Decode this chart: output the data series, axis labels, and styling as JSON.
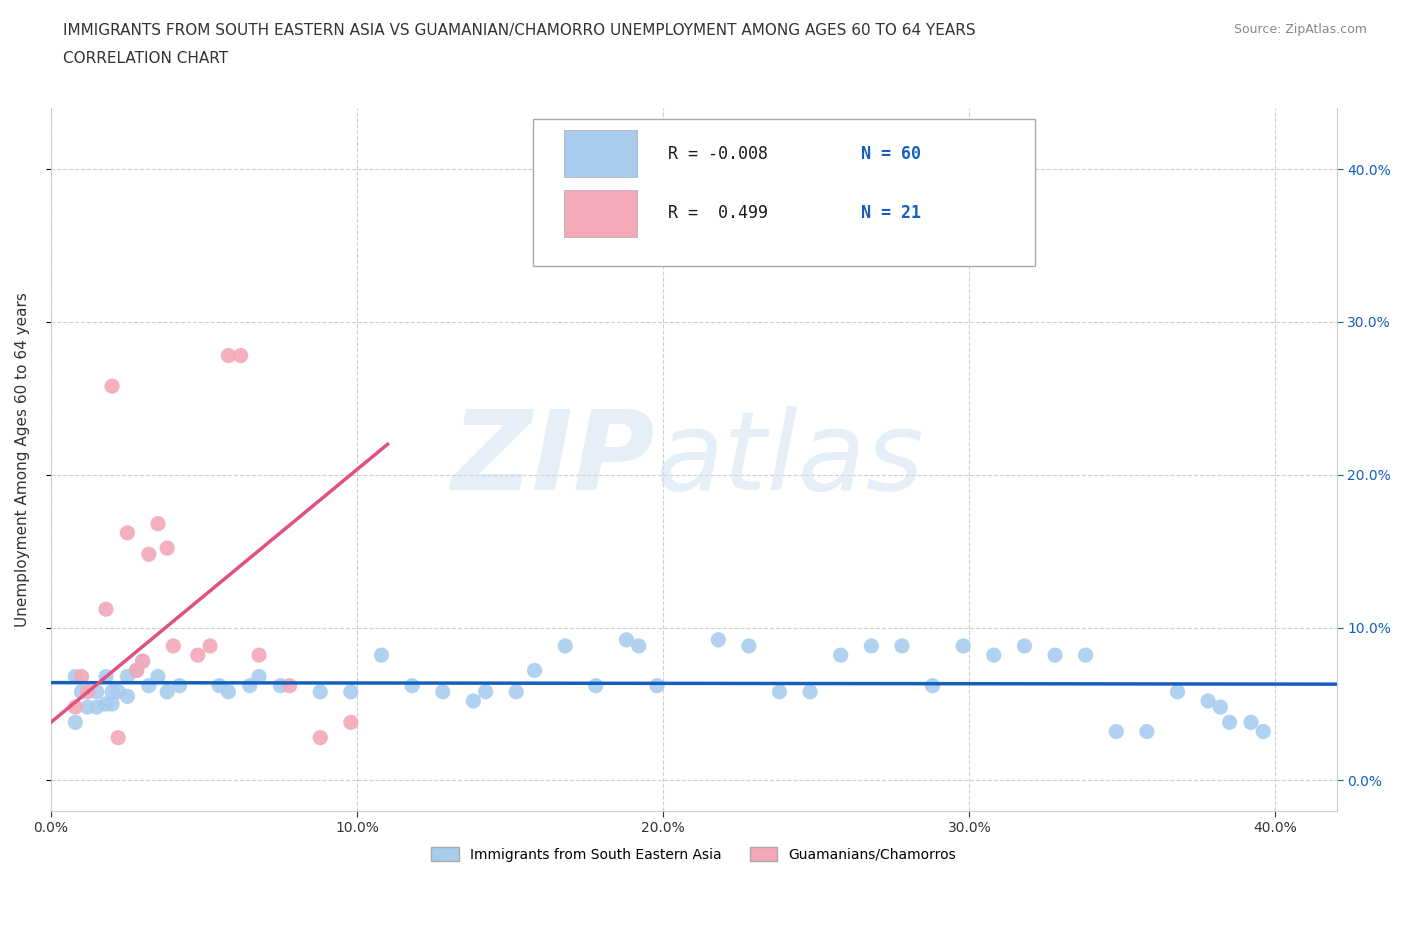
{
  "title_line1": "IMMIGRANTS FROM SOUTH EASTERN ASIA VS GUAMANIAN/CHAMORRO UNEMPLOYMENT AMONG AGES 60 TO 64 YEARS",
  "title_line2": "CORRELATION CHART",
  "source_text": "Source: ZipAtlas.com",
  "ylabel": "Unemployment Among Ages 60 to 64 years",
  "xlim": [
    0.0,
    0.42
  ],
  "ylim": [
    -0.02,
    0.44
  ],
  "blue_color": "#A8CCEE",
  "pink_color": "#F4A8B8",
  "blue_line_color": "#1560BD",
  "pink_line_color": "#E05080",
  "grid_color": "#BBBBBB",
  "blue_scatter": [
    [
      0.008,
      0.068
    ],
    [
      0.008,
      0.038
    ],
    [
      0.01,
      0.058
    ],
    [
      0.012,
      0.048
    ],
    [
      0.015,
      0.048
    ],
    [
      0.015,
      0.058
    ],
    [
      0.018,
      0.068
    ],
    [
      0.018,
      0.05
    ],
    [
      0.02,
      0.05
    ],
    [
      0.02,
      0.058
    ],
    [
      0.022,
      0.058
    ],
    [
      0.025,
      0.055
    ],
    [
      0.025,
      0.068
    ],
    [
      0.028,
      0.072
    ],
    [
      0.028,
      0.072
    ],
    [
      0.03,
      0.078
    ],
    [
      0.032,
      0.062
    ],
    [
      0.035,
      0.068
    ],
    [
      0.038,
      0.058
    ],
    [
      0.042,
      0.062
    ],
    [
      0.055,
      0.062
    ],
    [
      0.058,
      0.058
    ],
    [
      0.065,
      0.062
    ],
    [
      0.068,
      0.068
    ],
    [
      0.075,
      0.062
    ],
    [
      0.088,
      0.058
    ],
    [
      0.098,
      0.058
    ],
    [
      0.108,
      0.082
    ],
    [
      0.118,
      0.062
    ],
    [
      0.128,
      0.058
    ],
    [
      0.138,
      0.052
    ],
    [
      0.142,
      0.058
    ],
    [
      0.152,
      0.058
    ],
    [
      0.158,
      0.072
    ],
    [
      0.168,
      0.088
    ],
    [
      0.178,
      0.062
    ],
    [
      0.188,
      0.092
    ],
    [
      0.192,
      0.088
    ],
    [
      0.198,
      0.062
    ],
    [
      0.218,
      0.092
    ],
    [
      0.228,
      0.088
    ],
    [
      0.238,
      0.058
    ],
    [
      0.248,
      0.058
    ],
    [
      0.258,
      0.082
    ],
    [
      0.268,
      0.088
    ],
    [
      0.278,
      0.088
    ],
    [
      0.288,
      0.062
    ],
    [
      0.298,
      0.088
    ],
    [
      0.308,
      0.082
    ],
    [
      0.318,
      0.088
    ],
    [
      0.328,
      0.082
    ],
    [
      0.338,
      0.082
    ],
    [
      0.348,
      0.032
    ],
    [
      0.358,
      0.032
    ],
    [
      0.368,
      0.058
    ],
    [
      0.378,
      0.052
    ],
    [
      0.382,
      0.048
    ],
    [
      0.385,
      0.038
    ],
    [
      0.392,
      0.038
    ],
    [
      0.396,
      0.032
    ]
  ],
  "pink_scatter": [
    [
      0.008,
      0.048
    ],
    [
      0.01,
      0.068
    ],
    [
      0.012,
      0.058
    ],
    [
      0.018,
      0.112
    ],
    [
      0.02,
      0.258
    ],
    [
      0.022,
      0.028
    ],
    [
      0.025,
      0.162
    ],
    [
      0.028,
      0.072
    ],
    [
      0.03,
      0.078
    ],
    [
      0.032,
      0.148
    ],
    [
      0.035,
      0.168
    ],
    [
      0.038,
      0.152
    ],
    [
      0.04,
      0.088
    ],
    [
      0.048,
      0.082
    ],
    [
      0.052,
      0.088
    ],
    [
      0.058,
      0.278
    ],
    [
      0.062,
      0.278
    ],
    [
      0.068,
      0.082
    ],
    [
      0.078,
      0.062
    ],
    [
      0.088,
      0.028
    ],
    [
      0.098,
      0.038
    ]
  ],
  "blue_trend_x": [
    0.0,
    0.42
  ],
  "blue_trend_y": [
    0.064,
    0.063
  ],
  "pink_trend_x": [
    0.0,
    0.11
  ],
  "pink_trend_y": [
    0.038,
    0.22
  ],
  "legend_items": [
    {
      "color": "#A8CCEE",
      "r": "R = -0.008",
      "n": "N = 60"
    },
    {
      "color": "#F4A8B8",
      "r": "R =  0.499",
      "n": "N = 21"
    }
  ],
  "bottom_legend": [
    {
      "color": "#A8CCEE",
      "label": "Immigrants from South Eastern Asia"
    },
    {
      "color": "#F4A8B8",
      "label": "Guamanians/Chamorros"
    }
  ]
}
